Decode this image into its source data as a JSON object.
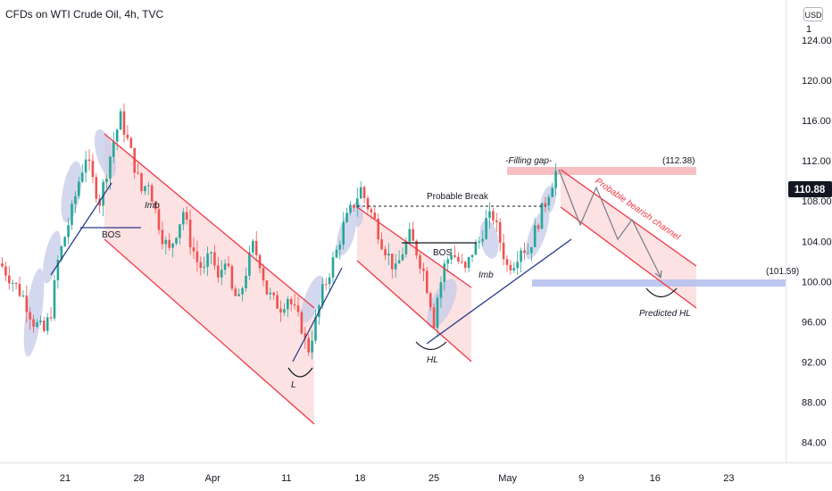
{
  "header": {
    "title": "CFDs on WTI Crude Oil, 4h, TVC",
    "currency": "USD"
  },
  "colors": {
    "bull": "#26a69a",
    "bear": "#ef5350",
    "channel": "#f23645",
    "channel_fill": "#fcd8da",
    "highlight": "#c5cbe8",
    "trendline": "#2a3a8c",
    "support_band": "#b7c1ee",
    "gap_band": "#f7b4b9",
    "price_badge": "#131722"
  },
  "chart_data": {
    "type": "candlestick",
    "y_axis": {
      "ticks": [
        "124.00",
        "120.00",
        "116.00",
        "112.00",
        "108.00",
        "104.00",
        "100.00",
        "96.00",
        "92.00",
        "88.00",
        "84.00"
      ],
      "top_partial": "1",
      "range": [
        82,
        128
      ]
    },
    "x_axis": {
      "ticks": [
        "21",
        "28",
        "Apr",
        "11",
        "18",
        "25",
        "May",
        "9",
        "16",
        "23"
      ]
    },
    "last_price": "110.88",
    "levels": {
      "upper_label": "(112.38)",
      "upper_value": 112.38,
      "lower_label": "(101.59)",
      "lower_value": 101.59
    },
    "annotations": {
      "bos_1": "BOS",
      "imb_1": "Imb",
      "low_1": "L",
      "probable_break": "Probable Break",
      "bos_2": "BOS",
      "imb_2": "Imb",
      "hl": "HL",
      "filling_gap": "-Filling gap-",
      "bearish_channel": "Probable bearish channel",
      "predicted_hl": "Predicted HL"
    },
    "price_path": [
      [
        0,
        101.5
      ],
      [
        3,
        100
      ],
      [
        6,
        98.5
      ],
      [
        9,
        96
      ],
      [
        12,
        95
      ],
      [
        14,
        97
      ],
      [
        16,
        102
      ],
      [
        18,
        104.5
      ],
      [
        20,
        107
      ],
      [
        22,
        110
      ],
      [
        24,
        112.5
      ],
      [
        26,
        110
      ],
      [
        28,
        108
      ],
      [
        30,
        111
      ],
      [
        32,
        114
      ],
      [
        34,
        116.3
      ],
      [
        36,
        114
      ],
      [
        38,
        111.5
      ],
      [
        40,
        109
      ],
      [
        42,
        110
      ],
      [
        44,
        107
      ],
      [
        46,
        104.5
      ],
      [
        48,
        103
      ],
      [
        50,
        105
      ],
      [
        52,
        107
      ],
      [
        54,
        104
      ],
      [
        56,
        102
      ],
      [
        58,
        101
      ],
      [
        60,
        103
      ],
      [
        62,
        100
      ],
      [
        64,
        102.5
      ],
      [
        66,
        99
      ],
      [
        68,
        98
      ],
      [
        70,
        101
      ],
      [
        72,
        103.5
      ],
      [
        74,
        102
      ],
      [
        76,
        99
      ],
      [
        78,
        98
      ],
      [
        80,
        97.5
      ],
      [
        82,
        98.5
      ],
      [
        84,
        97
      ],
      [
        86,
        95.5
      ],
      [
        87,
        94
      ],
      [
        88,
        93.3
      ],
      [
        90,
        96
      ],
      [
        92,
        99
      ],
      [
        94,
        101
      ],
      [
        96,
        103
      ],
      [
        98,
        105.5
      ],
      [
        100,
        107
      ],
      [
        102,
        108.5
      ],
      [
        103,
        109.2
      ],
      [
        105,
        107.5
      ],
      [
        107,
        106
      ],
      [
        109,
        104
      ],
      [
        111,
        102.5
      ],
      [
        113,
        101
      ],
      [
        115,
        103
      ],
      [
        117,
        104.5
      ],
      [
        119,
        103
      ],
      [
        121,
        101
      ],
      [
        123,
        98
      ],
      [
        124,
        96
      ],
      [
        125,
        98.5
      ],
      [
        127,
        101.5
      ],
      [
        129,
        103
      ],
      [
        131,
        102
      ],
      [
        133,
        101
      ],
      [
        135,
        103
      ],
      [
        137,
        104
      ],
      [
        139,
        106
      ],
      [
        141,
        106.5
      ],
      [
        143,
        104
      ],
      [
        145,
        101.5
      ],
      [
        147,
        102
      ],
      [
        149,
        103.5
      ],
      [
        151,
        103
      ],
      [
        153,
        105
      ],
      [
        155,
        107
      ],
      [
        157,
        109
      ],
      [
        159,
        110.88
      ]
    ]
  }
}
